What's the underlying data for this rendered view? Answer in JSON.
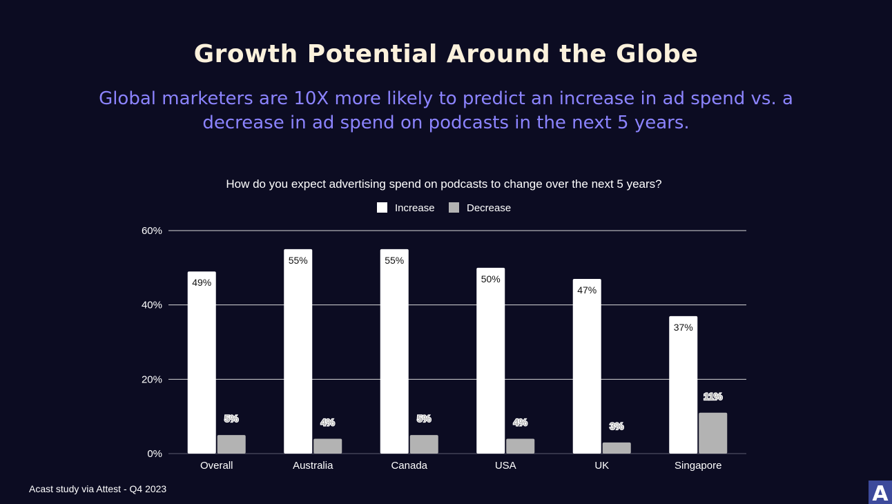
{
  "header": {
    "title": "Growth Potential Around the Globe",
    "subtitle": "Global marketers are 10X more likely to predict an increase in ad spend vs. a decrease in ad spend on podcasts in the next 5 years."
  },
  "footer": {
    "source": "Acast study via Attest - Q4 2023",
    "logo_letter": "A"
  },
  "colors": {
    "background": "#0c0c22",
    "increase": "#ffffff",
    "decrease": "#b3b3b3",
    "title": "#fbf1dc",
    "subtitle": "#8c84ff",
    "logo": "#3d4a9b"
  },
  "chart_data": {
    "type": "bar",
    "title": "How do you expect advertising spend on podcasts to change over the next 5 years?",
    "categories": [
      "Overall",
      "Australia",
      "Canada",
      "USA",
      "UK",
      "Singapore"
    ],
    "series": [
      {
        "name": "Increase",
        "values": [
          49,
          55,
          55,
          50,
          47,
          37
        ],
        "labels": [
          "49%",
          "55%",
          "55%",
          "50%",
          "47%",
          "37%"
        ]
      },
      {
        "name": "Decrease",
        "values": [
          5,
          4,
          5,
          4,
          3,
          11
        ],
        "labels": [
          "5%",
          "4%",
          "5%",
          "4%",
          "3%",
          "11%"
        ]
      }
    ],
    "ylim": [
      0,
      60
    ],
    "yticks": [
      0,
      20,
      40,
      60
    ],
    "ytick_labels": [
      "0%",
      "20%",
      "40%",
      "60%"
    ],
    "grid": true,
    "legend_position": "top-center",
    "xlabel": "",
    "ylabel": ""
  }
}
